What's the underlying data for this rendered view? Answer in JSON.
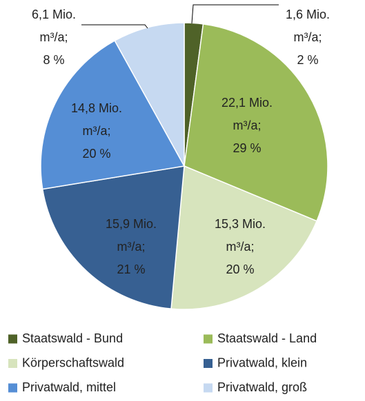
{
  "chart_data": {
    "type": "pie",
    "categories": [
      "Staatswald - Bund",
      "Staatswald - Land",
      "Körperschaftswald",
      "Privatwald, klein",
      "Privatwald, mittel",
      "Privatwald, groß"
    ],
    "values": [
      1.6,
      22.1,
      15.3,
      15.9,
      14.8,
      6.1
    ],
    "value_labels": [
      [
        "1,6 Mio.",
        "m³/a;",
        "2 %"
      ],
      [
        "22,1 Mio.",
        "m³/a;",
        "29 %"
      ],
      [
        "15,3 Mio.",
        "m³/a;",
        "20 %"
      ],
      [
        "15,9 Mio.",
        "m³/a;",
        "21 %"
      ],
      [
        "14,8 Mio.",
        "m³/a;",
        "20 %"
      ],
      [
        "6,1 Mio.",
        "m³/a;",
        "8 %"
      ]
    ],
    "colors": [
      "#4f6228",
      "#9bbb59",
      "#d7e4bd",
      "#376092",
      "#558ed5",
      "#c6d9f1"
    ],
    "legend": "bottom"
  }
}
